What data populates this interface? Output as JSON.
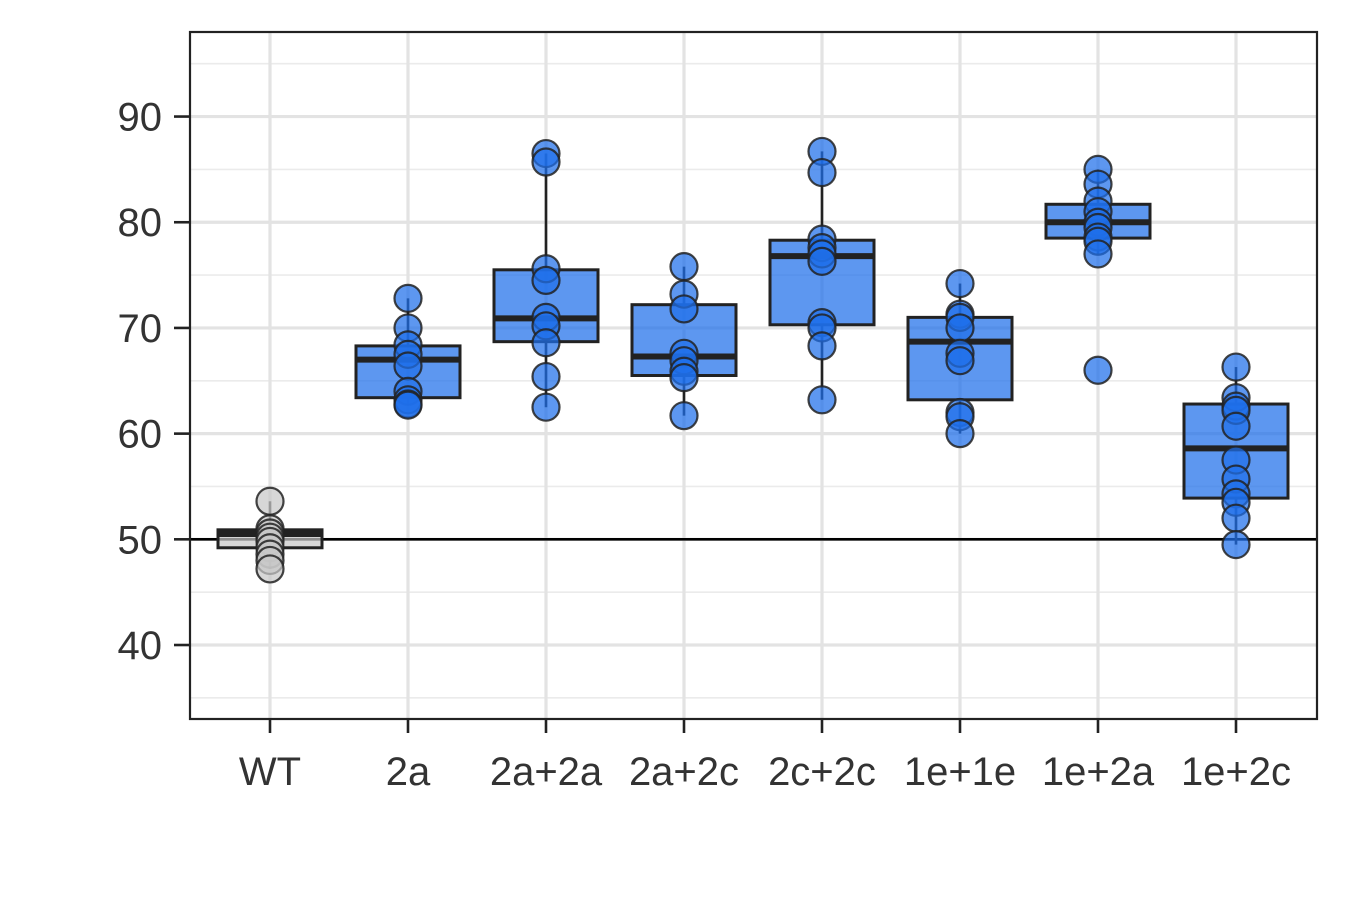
{
  "chart_data": {
    "type": "box",
    "xlabel": "",
    "ylabel": "",
    "title": "",
    "ylim": [
      33,
      98
    ],
    "yticks": [
      40,
      50,
      60,
      70,
      80,
      90
    ],
    "categories": [
      "WT",
      "2a",
      "2a+2a",
      "2a+2c",
      "2c+2c",
      "1e+1e",
      "1e+2a",
      "1e+2c"
    ],
    "reference_line": 50,
    "grid": true,
    "colors": {
      "control": "#c8c8c8",
      "variant": "#1f6fea",
      "outline": "#222222"
    },
    "groups": [
      {
        "name": "WT",
        "color_key": "control",
        "q1": 49.2,
        "median": 50.5,
        "q3": 50.9,
        "whisker_low": 47.2,
        "whisker_high": 53.6,
        "points": [
          53.6,
          51.0,
          50.6,
          50.2,
          49.8,
          49.2,
          48.6,
          48.0,
          47.2
        ]
      },
      {
        "name": "2a",
        "color_key": "variant",
        "q1": 63.4,
        "median": 67.0,
        "q3": 68.3,
        "whisker_low": 62.7,
        "whisker_high": 72.8,
        "points": [
          72.8,
          70.0,
          68.4,
          67.5,
          66.4,
          64.0,
          63.2,
          62.8,
          62.7
        ]
      },
      {
        "name": "2a+2a",
        "color_key": "variant",
        "q1": 68.7,
        "median": 70.9,
        "q3": 75.5,
        "whisker_low": 62.5,
        "whisker_high": 86.5,
        "points": [
          86.5,
          85.7,
          75.6,
          74.5,
          71.0,
          70.2,
          68.6,
          65.4,
          62.5
        ]
      },
      {
        "name": "2a+2c",
        "color_key": "variant",
        "q1": 65.5,
        "median": 67.3,
        "q3": 72.2,
        "whisker_low": 61.7,
        "whisker_high": 75.8,
        "points": [
          75.8,
          73.2,
          71.8,
          67.6,
          66.9,
          65.9,
          65.3,
          61.7
        ]
      },
      {
        "name": "2c+2c",
        "color_key": "variant",
        "q1": 70.3,
        "median": 76.8,
        "q3": 78.3,
        "whisker_low": 63.2,
        "whisker_high": 86.7,
        "points": [
          86.7,
          84.7,
          78.4,
          77.6,
          77.0,
          76.3,
          70.5,
          70.0,
          68.3,
          63.2
        ]
      },
      {
        "name": "1e+1e",
        "color_key": "variant",
        "q1": 63.2,
        "median": 68.7,
        "q3": 71.0,
        "whisker_low": 60.0,
        "whisker_high": 74.2,
        "points": [
          74.2,
          71.3,
          71.0,
          70.0,
          67.6,
          66.9,
          62.0,
          61.6,
          60.0
        ]
      },
      {
        "name": "1e+2a",
        "color_key": "variant",
        "q1": 78.5,
        "median": 80.0,
        "q3": 81.7,
        "whisker_low": 77.0,
        "whisker_high": 85.0,
        "points": [
          85.0,
          83.6,
          82.0,
          81.0,
          80.0,
          79.5,
          78.6,
          78.2,
          77.0,
          66.0
        ]
      },
      {
        "name": "1e+2c",
        "color_key": "variant",
        "q1": 53.9,
        "median": 58.6,
        "q3": 62.8,
        "whisker_low": 49.5,
        "whisker_high": 66.3,
        "points": [
          66.3,
          63.4,
          62.6,
          62.2,
          60.7,
          57.5,
          55.7,
          54.3,
          53.5,
          52.0,
          49.5
        ]
      }
    ]
  }
}
